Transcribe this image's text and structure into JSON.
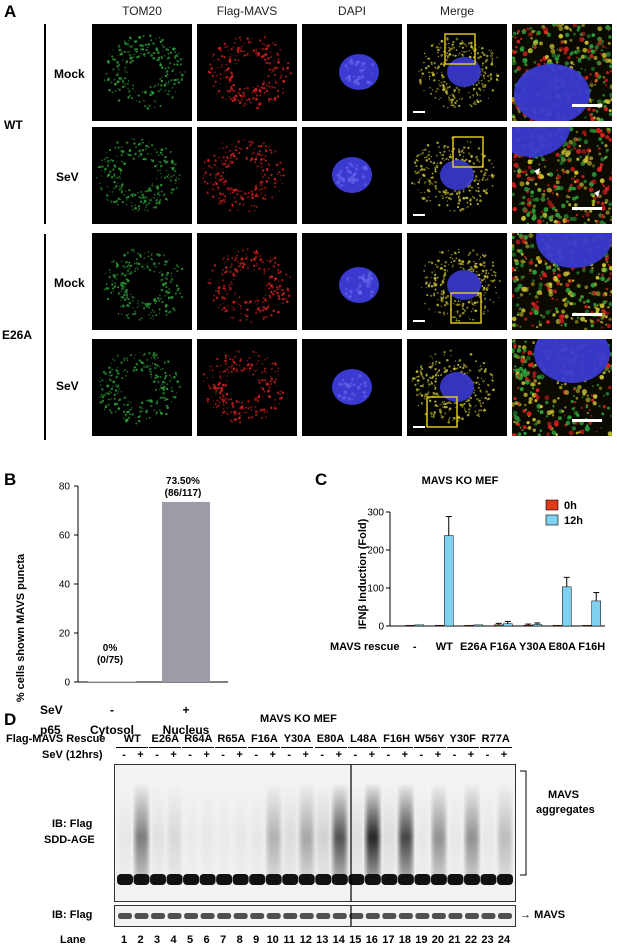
{
  "panelA": {
    "letter": "A",
    "columns": [
      "TOM20",
      "Flag-MAVS",
      "DAPI",
      "Merge"
    ],
    "groups": [
      "WT",
      "E26A"
    ],
    "rows": [
      "Mock",
      "SeV",
      "Mock",
      "SeV"
    ],
    "colors": {
      "tom20": "#2ea03a",
      "mavs": "#d82020",
      "dapi": "#3a3ad0",
      "merge": "#c8c030",
      "box": "#e8d020"
    }
  },
  "panelB": {
    "letter": "B",
    "chart_data": {
      "type": "bar",
      "categories": [
        "Cytosol",
        "Nucleus"
      ],
      "values": [
        0,
        73.5
      ],
      "annotations": [
        "0%\n(0/75)",
        "73.50%\n(86/117)"
      ],
      "ylabel": "% cells shown MAVS puncta",
      "ylim": [
        0,
        80
      ],
      "yticks": [
        0,
        20,
        40,
        60,
        80
      ],
      "row_labels": {
        "sev": "SeV",
        "p65": "p65"
      },
      "sev_values": [
        "-",
        "+"
      ],
      "annot_top": [
        "0%",
        "73.50%"
      ],
      "annot_bottom": [
        "(0/75)",
        "(86/117)"
      ]
    }
  },
  "panelC": {
    "letter": "C",
    "chart_data": {
      "type": "bar",
      "title": "MAVS KO MEF",
      "categories": [
        "-",
        "WT",
        "E26A",
        "F16A",
        "Y30A",
        "E80A",
        "F16H"
      ],
      "series": [
        {
          "name": "0h",
          "values": [
            2,
            2,
            2,
            3,
            2,
            2,
            2
          ],
          "errors": [
            0,
            0,
            0,
            4,
            3,
            0,
            0
          ]
        },
        {
          "name": "12h",
          "values": [
            3,
            238,
            3,
            6,
            4,
            103,
            66
          ],
          "errors": [
            0,
            50,
            0,
            6,
            4,
            25,
            22
          ]
        }
      ],
      "ylabel": "IFNβ Induction (Fold)",
      "xlabel": "MAVS rescue",
      "ylim": [
        0,
        300
      ],
      "yticks": [
        0,
        100,
        200,
        300
      ],
      "colors": {
        "0h": "#e03a1a",
        "12h": "#80d0f0"
      }
    }
  },
  "panelD": {
    "letter": "D",
    "title": "MAVS KO MEF",
    "rescue_label": "Flag-MAVS Rescue",
    "sev_label": "SeV (12hrs)",
    "mutants": [
      "WT",
      "E26A",
      "R64A",
      "R65A",
      "F16A",
      "Y30A",
      "E80A",
      "L48A",
      "F16H",
      "W56Y",
      "Y30F",
      "R77A"
    ],
    "sev_marks": [
      "-",
      "+"
    ],
    "blot1_label": [
      "IB: Flag",
      "SDD-AGE"
    ],
    "aggregates_label": [
      "MAVS",
      "aggregates"
    ],
    "blot2_label": "IB: Flag",
    "mavs_label": "MAVS",
    "lane_label": "Lane",
    "lanes": [
      "1",
      "2",
      "3",
      "4",
      "5",
      "6",
      "7",
      "8",
      "9",
      "10",
      "11",
      "12",
      "13",
      "14",
      "15",
      "16",
      "17",
      "18",
      "19",
      "20",
      "21",
      "22",
      "23",
      "24"
    ],
    "smear_intensity": [
      0.05,
      0.55,
      0.08,
      0.12,
      0.04,
      0.05,
      0.04,
      0.05,
      0.05,
      0.3,
      0.1,
      0.35,
      0.15,
      0.75,
      0.1,
      0.95,
      0.1,
      0.8,
      0.05,
      0.45,
      0.05,
      0.45,
      0.05,
      0.25
    ]
  }
}
